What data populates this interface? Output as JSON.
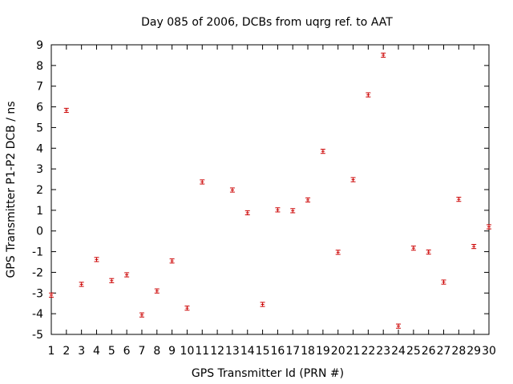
{
  "chart_data": {
    "type": "scatter",
    "title": "Day 085 of 2006, DCBs from uqrg ref. to AAT",
    "xlabel": "GPS Transmitter Id (PRN #)",
    "ylabel": "GPS Transmitter P1-P2 DCB / ns",
    "xlim": [
      1,
      30
    ],
    "ylim": [
      -5,
      9
    ],
    "x_ticks": [
      1,
      2,
      3,
      4,
      5,
      6,
      7,
      8,
      9,
      10,
      11,
      12,
      13,
      14,
      15,
      16,
      17,
      18,
      19,
      20,
      21,
      22,
      23,
      24,
      25,
      26,
      27,
      28,
      29,
      30
    ],
    "y_ticks": [
      -5,
      -4,
      -3,
      -2,
      -1,
      0,
      1,
      2,
      3,
      4,
      5,
      6,
      7,
      8,
      9
    ],
    "grid": false,
    "legend": "none",
    "marker": "error-bar",
    "marker_color": "#cc0000",
    "error": 0.1,
    "points": [
      {
        "prn": 1,
        "dcb": -3.1
      },
      {
        "prn": 2,
        "dcb": 5.83
      },
      {
        "prn": 3,
        "dcb": -2.58
      },
      {
        "prn": 4,
        "dcb": -1.38
      },
      {
        "prn": 5,
        "dcb": -2.4
      },
      {
        "prn": 6,
        "dcb": -2.12
      },
      {
        "prn": 7,
        "dcb": -4.06
      },
      {
        "prn": 8,
        "dcb": -2.9
      },
      {
        "prn": 9,
        "dcb": -1.45
      },
      {
        "prn": 10,
        "dcb": -3.73
      },
      {
        "prn": 11,
        "dcb": 2.37
      },
      {
        "prn": 13,
        "dcb": 1.98
      },
      {
        "prn": 14,
        "dcb": 0.88
      },
      {
        "prn": 15,
        "dcb": -3.55
      },
      {
        "prn": 16,
        "dcb": 1.02
      },
      {
        "prn": 17,
        "dcb": 0.98
      },
      {
        "prn": 18,
        "dcb": 1.5
      },
      {
        "prn": 19,
        "dcb": 3.85
      },
      {
        "prn": 20,
        "dcb": -1.03
      },
      {
        "prn": 21,
        "dcb": 2.48
      },
      {
        "prn": 22,
        "dcb": 6.58
      },
      {
        "prn": 23,
        "dcb": 8.5
      },
      {
        "prn": 24,
        "dcb": -4.6
      },
      {
        "prn": 25,
        "dcb": -0.83
      },
      {
        "prn": 26,
        "dcb": -1.02
      },
      {
        "prn": 27,
        "dcb": -2.47
      },
      {
        "prn": 28,
        "dcb": 1.53
      },
      {
        "prn": 29,
        "dcb": -0.75
      },
      {
        "prn": 30,
        "dcb": 0.2
      }
    ]
  }
}
